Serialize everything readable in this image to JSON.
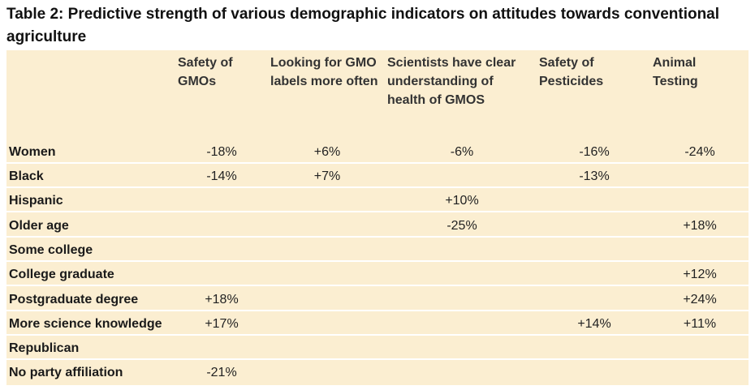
{
  "title": "Table 2: Predictive strength of various demographic indicators on attitudes towards conventional agriculture",
  "columns": [
    "Safety of GMOs",
    "Looking for GMO labels more often",
    "Scientists have clear understanding of health of GMOS",
    "Safety of Pesticides",
    "Animal Testing"
  ],
  "rows": [
    {
      "label": "Women",
      "values": [
        "-18%",
        "+6%",
        "-6%",
        "-16%",
        "-24%"
      ]
    },
    {
      "label": "Black",
      "values": [
        "-14%",
        "+7%",
        "",
        "-13%",
        ""
      ]
    },
    {
      "label": "Hispanic",
      "values": [
        "",
        "",
        "+10%",
        "",
        ""
      ]
    },
    {
      "label": "Older age",
      "values": [
        "",
        "",
        "-25%",
        "",
        "+18%"
      ]
    },
    {
      "label": "Some college",
      "values": [
        "",
        "",
        "",
        "",
        ""
      ]
    },
    {
      "label": "College graduate",
      "values": [
        "",
        "",
        "",
        "",
        "+12%"
      ]
    },
    {
      "label": "Postgraduate degree",
      "values": [
        "+18%",
        "",
        "",
        "",
        "+24%"
      ]
    },
    {
      "label": "More science knowledge",
      "values": [
        "+17%",
        "",
        "",
        "+14%",
        "+11%"
      ]
    },
    {
      "label": "Republican",
      "values": [
        "",
        "",
        "",
        "",
        ""
      ]
    },
    {
      "label": "No party affiliation",
      "values": [
        "-21%",
        "",
        "",
        "",
        ""
      ]
    }
  ],
  "colors": {
    "table_background": "#fbeed1",
    "row_separator": "#ffffff"
  }
}
